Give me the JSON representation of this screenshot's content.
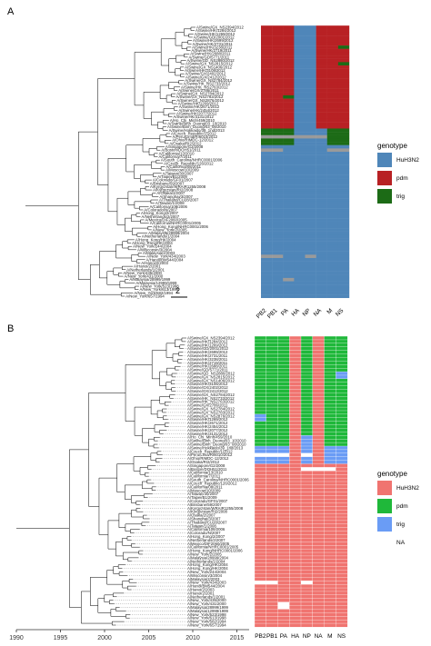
{
  "panels": [
    {
      "label": "A",
      "tips": [
        "A/Swine/GX_NS2394/2012",
        "A/Swine/HK/1284/2012",
        "A/Swine/HK/1269/2012",
        "A/Swine/GD/2001/2012",
        "A/Swine/HK/2699/2012",
        "A/Swine/HK/2731/2011",
        "A/Swine/HK/3238/2011",
        "A/Swine/HK/2719/2011",
        "A/Swine/HK/2688/2011",
        "A/Swine/GD/5771/2011",
        "A/Swine/GD_NS2880/2012",
        "A/Swine/GX_NS2815/2012",
        "A/Swine/GX_NS1406/2012",
        "A/Swine/HK/3108/2012",
        "A/Swine/GX/2402/2012",
        "A/Swine/GX/2412/2012",
        "A/Swine/GX_NS2784/2012",
        "A/Swine/HK_NS2733/2012",
        "A/Swine/HK_NS2763/2012",
        "A/Swine/GX/2786/2011",
        "A/Swine/GX_NS2784/2012",
        "A/Swine/GX_NS2783/2012",
        "A/Swine/GX_NS2876/2012",
        "A/Swine/HK/1269/2012",
        "A/Swine/HK/2671/2012",
        "A/Swine/HK/2454/2012",
        "A/Swine/HK/2077/2012",
        "A/Swine/HK/3131/2012",
        "A/Ho_Chi_Minh/459/2010",
        "A/Swine/Binh_Duong/03_10/2010",
        "A/Swine/Binh_Duong/03_08/2010",
        "A/Swine/Hokkaido/39_1nd/2013",
        "A/Czech_Republic/1/2012",
        "A/Peru/Lima/RI6010/2012",
        "A/Ohio/RIMDC-12/2012",
        "A/Osaka/RI2/2012",
        "A/Singapore/G2/2008",
        "A/Boston/DOH51/2011",
        "A/California/13/2010",
        "A/California/7/2011",
        "A/South_Carolina/NHRC0001/2006",
        "A/Czech_Republic/126/2012",
        "A/California/08/2011",
        "A/Moscow/10/2009",
        "A/Taiwan/30/2007",
        "A/Taipei/B1/2009",
        "A/Colorado/GF01/2007",
        "A/Brisbane/59/2007",
        "A/Kyrgyzstan/WRAIR1255/2008",
        "A/Kyrgyzstan/RI2/2008",
        "A/Osaka/2/2007",
        "A/Shanghai/3/2007",
        "A/Thailand/CU28/2007",
        "A/Taiwan/1/2008",
        "A/California/108/2006",
        "A/Colorado/N/2007",
        "A/Hong_Kong/2/2007",
        "A/Netherlands/2/2007",
        "A/Mexico/DIF2060/2005",
        "A/California/NHRC0001/2005",
        "A/Hong_Kong/NHRC0001/2006",
        "A/New_York/2/2005",
        "A/Malaysia/28999/2004",
        "A/Netherlands/1/2004",
        "A/Hong_Kong/HK/2004",
        "A/Hong_Kong/HK/2004",
        "A/New_York/244/2004",
        "A/Wisconsin/3/2004",
        "A/Malaysia/2/2003",
        "A/New_York/434/2003",
        "A/Hanoi/BM544/2004",
        "A/Hanoi/2/2003",
        "A/Hanoi/2/2001",
        "A/Netherlands/1/2001",
        "A/New_York/435/2000",
        "A/New_York/431/2000",
        "A/Malaysia/28999/1999",
        "A/Malaysia/12999/1999",
        "A/New_York/523/1998",
        "A/New_York/613/1998",
        "A/New_York/582/1994",
        "A/New_York/657/1994"
      ],
      "columns": [
        "PB2",
        "PB1",
        "PA",
        "HA",
        "NP",
        "NA",
        "M",
        "NS"
      ],
      "scale_bar_label": "2",
      "legend": {
        "title": "genotype",
        "entries": [
          {
            "label": "HuH3N2",
            "color": "#4f86b9"
          },
          {
            "label": "pdm",
            "color": "#b82124"
          },
          {
            "label": "trig",
            "color": "#1c6b16"
          }
        ]
      }
    },
    {
      "label": "B",
      "tips": [
        "A/Swine/GX_NS2394/2012",
        "A/Swine/HK/1284/2012",
        "A/Swine/HK/1269/2012",
        "A/Swine/GD/2001/2012",
        "A/Swine/HK/2699/2012",
        "A/Swine/HK/2731/2011",
        "A/Swine/HK/3238/2011",
        "A/Swine/HK/2719/2011",
        "A/Swine/HK/2688/2011",
        "A/Swine/GD/5771/2011",
        "A/Swine/GD_NS2880/2012",
        "A/Swine/GX_NS2815/2012",
        "A/Swine/GX_NS1406/2012",
        "A/Swine/HK/3108/2012",
        "A/Swine/GX/2402/2012",
        "A/Swine/GX/2412/2012",
        "A/Swine/GX_NS2784/2012",
        "A/Swine/HK_NS2733/2012",
        "A/Swine/HK_NS2763/2012",
        "A/Swine/GX/2786/2011",
        "A/Swine/GX_NS2784/2012",
        "A/Swine/GX_NS2783/2012",
        "A/Swine/GX_NS2876/2012",
        "A/Swine/HK/1269/2012",
        "A/Swine/HK/2671/2012",
        "A/Swine/HK/2454/2012",
        "A/Swine/HK/2077/2012",
        "A/Swine/HK/3131/2012",
        "A/Ho_Chi_Minh/459/2010",
        "A/Swine/Binh_Duong/03_10/2010",
        "A/Swine/Binh_Duong/03_08/2010",
        "A/Swine/Hokkaido/39_1nd/2013",
        "A/Czech_Republic/1/2012",
        "A/Peru/Lima/RI6010/2012",
        "A/Ohio/RIMDC-12/2012",
        "A/Osaka/RI2/2012",
        "A/Singapore/G2/2008",
        "A/Boston/DOH51/2011",
        "A/California/13/2010",
        "A/California/7/2011",
        "A/South_Carolina/NHRC0001/2006",
        "A/Czech_Republic/126/2012",
        "A/California/08/2011",
        "A/Moscow/10/2009",
        "A/Taiwan/30/2007",
        "A/Taipei/B1/2009",
        "A/Colorado/GF01/2007",
        "A/Brisbane/59/2007",
        "A/Kyrgyzstan/WRAIR1255/2008",
        "A/Kyrgyzstan/RI2/2008",
        "A/Osaka/2/2007",
        "A/Shanghai/3/2007",
        "A/Thailand/CU28/2007",
        "A/Taiwan/1/2008",
        "A/California/108/2006",
        "A/Colorado/N/2007",
        "A/Hong_Kong/2/2007",
        "A/Netherlands/2/2007",
        "A/Mexico/DIF2060/2005",
        "A/California/NHRC0001/2005",
        "A/Hong_Kong/NHRC0001/2006",
        "A/New_York/2/2005",
        "A/Malaysia/28999/2004",
        "A/Netherlands/1/2004",
        "A/Hong_Kong/HK/2004",
        "A/Hong_Kong/HK/2004",
        "A/New_York/244/2004",
        "A/Wisconsin/3/2004",
        "A/Malaysia/2/2003",
        "A/New_York/434/2003",
        "A/Hanoi/BM544/2004",
        "A/Hanoi/2/2003",
        "A/Hanoi/2/2001",
        "A/Netherlands/1/2001",
        "A/New_York/435/2000",
        "A/New_York/431/2000",
        "A/Malaysia/28999/1999",
        "A/Malaysia/12999/1999",
        "A/New_York/523/1998",
        "A/New_York/613/1998",
        "A/New_York/582/1994",
        "A/New_York/657/1994"
      ],
      "columns": [
        "PB2",
        "PB1",
        "PA",
        "HA",
        "NP",
        "NA",
        "M",
        "NS"
      ],
      "axis_ticks": [
        "1990",
        "1995",
        "2000",
        "2005",
        "2010",
        "2015"
      ],
      "legend": {
        "title": "genotype",
        "entries": [
          {
            "label": "HuH3N2",
            "color": "#f07470"
          },
          {
            "label": "pdm",
            "color": "#1fb83a"
          },
          {
            "label": "trig",
            "color": "#6a9cf5"
          },
          {
            "label": "NA",
            "color": ""
          }
        ]
      }
    }
  ]
}
